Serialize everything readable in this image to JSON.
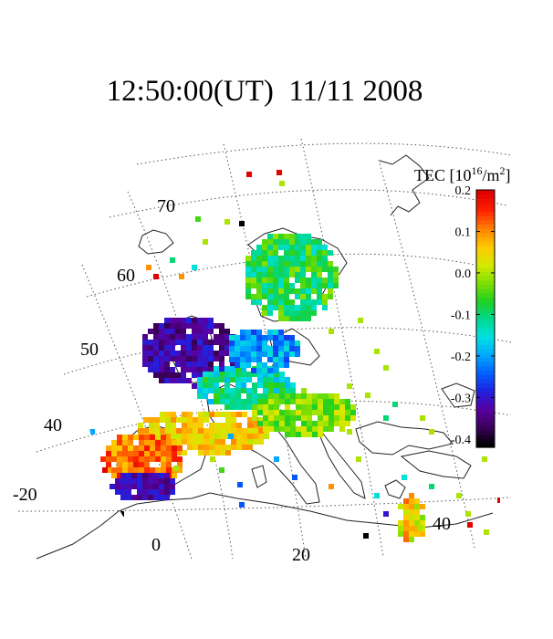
{
  "title": {
    "time": "12:50:00(UT)",
    "date": "11/11 2008"
  },
  "map": {
    "latitude_labels": [
      "70",
      "60",
      "50",
      "40"
    ],
    "longitude_labels": [
      "-20",
      "0",
      "20",
      "40"
    ]
  },
  "colorbar": {
    "title": "TEC [10",
    "exponent": "16",
    "unit": "/m",
    "unit_exponent": "2",
    "unit_close": "]",
    "ticks": [
      "0.2",
      "0.1",
      "0.0",
      "-0.1",
      "-0.2",
      "-0.3",
      "-0.4"
    ],
    "min": -0.42,
    "max": 0.2,
    "colors": [
      "#000000",
      "#3a0058",
      "#5a00a0",
      "#2020e0",
      "#0060ff",
      "#00a8ff",
      "#00e0e0",
      "#00d890",
      "#20d020",
      "#80e000",
      "#d8e800",
      "#ffc800",
      "#ff8000",
      "#ff2000",
      "#e00000"
    ]
  }
}
